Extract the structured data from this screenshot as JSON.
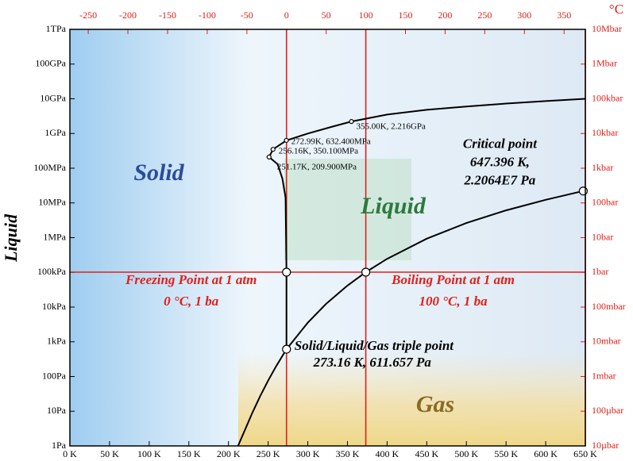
{
  "chart_data": {
    "type": "line",
    "ylabel": "Liquid",
    "x2label": "°C",
    "log_y": true,
    "xlim": [
      0,
      650
    ],
    "xticks": [
      {
        "value": 0,
        "label": "0 K"
      },
      {
        "value": 50,
        "label": "50 K"
      },
      {
        "value": 100,
        "label": "100 K"
      },
      {
        "value": 150,
        "label": "150 K"
      },
      {
        "value": 200,
        "label": "200 K"
      },
      {
        "value": 250,
        "label": "250 K"
      },
      {
        "value": 300,
        "label": "300 K"
      },
      {
        "value": 350,
        "label": "350 K"
      },
      {
        "value": 400,
        "label": "400 K"
      },
      {
        "value": 450,
        "label": "450 K"
      },
      {
        "value": 500,
        "label": "500 K"
      },
      {
        "value": 550,
        "label": "550 K"
      },
      {
        "value": 600,
        "label": "600 K"
      },
      {
        "value": 650,
        "label": "650 K"
      }
    ],
    "x2lim": [
      -273.15,
      376.85
    ],
    "x2ticks": [
      -250,
      -200,
      -150,
      -100,
      -50,
      0,
      50,
      100,
      150,
      200,
      250,
      300,
      350
    ],
    "ylim": [
      1,
      1000000000000
    ],
    "yticks": [
      {
        "value": 1,
        "label": "1Pa"
      },
      {
        "value": 10,
        "label": "10Pa"
      },
      {
        "value": 100,
        "label": "100Pa"
      },
      {
        "value": 1000,
        "label": "1kPa"
      },
      {
        "value": 10000,
        "label": "10kPa"
      },
      {
        "value": 100000,
        "label": "100kPa"
      },
      {
        "value": 1000000,
        "label": "1MPa"
      },
      {
        "value": 10000000,
        "label": "10MPa"
      },
      {
        "value": 100000000,
        "label": "100MPa"
      },
      {
        "value": 1000000000,
        "label": "1GPa"
      },
      {
        "value": 10000000000,
        "label": "10GPa"
      },
      {
        "value": 100000000000,
        "label": "100GPa"
      },
      {
        "value": 1000000000000,
        "label": "1TPa"
      }
    ],
    "y2lim": [
      1e-05,
      10000000
    ],
    "y2ticks": [
      {
        "value": 1e-05,
        "label": "10µbar"
      },
      {
        "value": 0.0001,
        "label": "100µbar"
      },
      {
        "value": 0.001,
        "label": "1mbar"
      },
      {
        "value": 0.01,
        "label": "10mbar"
      },
      {
        "value": 0.1,
        "label": "100mbar"
      },
      {
        "value": 1,
        "label": "1bar"
      },
      {
        "value": 10,
        "label": "10bar"
      },
      {
        "value": 100,
        "label": "100bar"
      },
      {
        "value": 1000,
        "label": "1kbar"
      },
      {
        "value": 10000,
        "label": "10kbar"
      },
      {
        "value": 100000,
        "label": "100kbar"
      },
      {
        "value": 1000000,
        "label": "1Mbar"
      },
      {
        "value": 10000000,
        "label": "10Mbar"
      }
    ],
    "series": [
      {
        "color": "#000000",
        "x": [
          212,
          220,
          230,
          240,
          250,
          260,
          273.16
        ],
        "values": [
          1,
          2.65,
          8.9,
          27.3,
          76,
          196,
          611.657
        ]
      },
      {
        "color": "#000000",
        "x": [
          273.16,
          300,
          323,
          350,
          373.15,
          400,
          450,
          500,
          550,
          600,
          647.396
        ],
        "values": [
          611.657,
          3537,
          12350,
          41680,
          101325,
          245800,
          932000,
          2640000,
          6120000,
          12300000,
          22064000
        ]
      },
      {
        "color": "#000000",
        "x": [
          273.16,
          273.15,
          272,
          268,
          262,
          251.17,
          256.16,
          272.99,
          300,
          330,
          355,
          400,
          450,
          500,
          550,
          600,
          650
        ],
        "values": [
          611.657,
          101325,
          14000000,
          50000000,
          130000000,
          209900000,
          350100000,
          632400000,
          1000000000,
          1550000000,
          2216000000,
          3500000000,
          4800000000,
          6000000000,
          7300000000,
          8600000000,
          10000000000
        ]
      }
    ],
    "ref_color": "#e0201a",
    "hlines": [
      101325
    ],
    "vlines": [
      273.15,
      373.15
    ],
    "points": [
      {
        "x": 273.16,
        "y": 611.657,
        "label": [
          "Solid/Liquid/Gas triple point",
          "273.16 K, 611.657 Pa"
        ]
      },
      {
        "x": 647.396,
        "y": 22064000,
        "label": [
          "Critical point",
          "647.396 K,",
          "2.2064E7 Pa"
        ]
      },
      {
        "x": 273.15,
        "y": 101325,
        "label": [
          "Freezing Point at 1 atm",
          "0 °C, 1 ba"
        ]
      },
      {
        "x": 373.15,
        "y": 101325,
        "label": [
          "Boiling Point at 1 atm",
          "100 °C, 1 ba"
        ]
      },
      {
        "x": 251.17,
        "y": 209900000,
        "label": [
          "251.17K, 209.900MPa"
        ]
      },
      {
        "x": 256.16,
        "y": 350100000,
        "label": [
          "256.16K, 350.100MPa"
        ]
      },
      {
        "x": 272.99,
        "y": 632400000,
        "label": [
          "272.99K, 632.400MPa"
        ]
      },
      {
        "x": 355,
        "y": 2216000000,
        "label": [
          "355.00K, 2.216GPa"
        ]
      }
    ],
    "regions": [
      {
        "text": "Solid",
        "color": "#2b4c9b"
      },
      {
        "text": "Liquid",
        "color": "#2c7a3c"
      },
      {
        "text": "Gas",
        "color": "#8a6a22"
      }
    ]
  }
}
